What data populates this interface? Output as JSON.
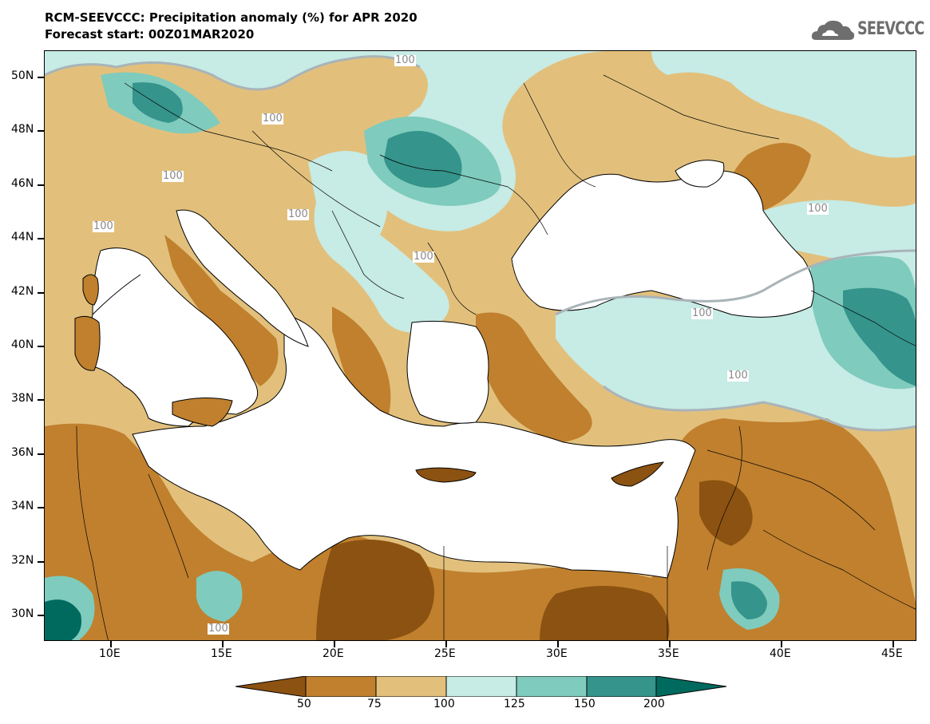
{
  "header": {
    "title_line1": "RCM-SEEVCCC: Precipitation anomaly (%) for APR 2020",
    "title_line2": "Forecast start: 00Z01MAR2020"
  },
  "logo": {
    "text": "SEEVCCC",
    "icon": "cloud-icon"
  },
  "map": {
    "lat_labels": [
      "50N",
      "48N",
      "46N",
      "44N",
      "42N",
      "40N",
      "38N",
      "36N",
      "34N",
      "32N",
      "30N"
    ],
    "lon_labels": [
      "10E",
      "15E",
      "20E",
      "25E",
      "30E",
      "35E",
      "40E",
      "45E"
    ],
    "contour_label": "100",
    "colors": {
      "below_50": "#8c5211",
      "50_75": "#c0802e",
      "75_100": "#e2c07c",
      "100_125": "#c7ebe5",
      "125_150": "#7fcbbd",
      "150_200": "#35948b",
      "above_200": "#016a5f",
      "sea": "#ffffff",
      "contour_100": "#a9b4b8"
    }
  },
  "legend": {
    "labels": [
      "50",
      "75",
      "100",
      "125",
      "150",
      "200"
    ],
    "colors": [
      "#8c5211",
      "#c0802e",
      "#e2c07c",
      "#c7ebe5",
      "#7fcbbd",
      "#35948b",
      "#016a5f"
    ]
  }
}
